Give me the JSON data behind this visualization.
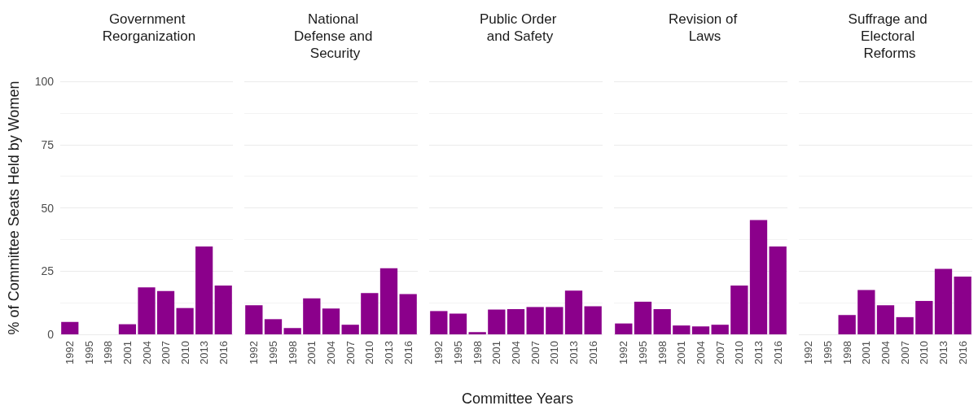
{
  "chart_data": [
    {
      "type": "bar",
      "title": "Government Reorganization",
      "ylabel": "% of Committee Seats Held by Women",
      "categories": [
        "1992",
        "1995",
        "1998",
        "2001",
        "2004",
        "2007",
        "2010",
        "2013",
        "2016"
      ],
      "values": [
        4.9,
        0,
        0,
        4.0,
        18.6,
        17.1,
        10.4,
        34.7,
        19.3
      ],
      "color": "#8b008b",
      "ylim": [
        0,
        100
      ],
      "yticks": [
        0,
        25,
        50,
        75,
        100
      ],
      "grid": "y"
    },
    {
      "type": "bar",
      "title": "National Defense and Security",
      "categories": [
        "1992",
        "1995",
        "1998",
        "2001",
        "2004",
        "2007",
        "2010",
        "2013",
        "2016"
      ],
      "values": [
        11.5,
        6.0,
        2.5,
        14.2,
        10.2,
        3.8,
        16.3,
        26.1,
        15.9
      ],
      "color": "#8b008b",
      "ylim": [
        0,
        100
      ],
      "yticks": [
        0,
        25,
        50,
        75,
        100
      ],
      "grid": "y",
      "tick_labels": "x"
    },
    {
      "type": "bar",
      "title": "Public Order and Safety",
      "xlabel": "Committee Years",
      "categories": [
        "1992",
        "1995",
        "1998",
        "2001",
        "2004",
        "2007",
        "2010",
        "2013",
        "2016"
      ],
      "values": [
        9.2,
        8.2,
        0.9,
        9.8,
        10.0,
        10.8,
        10.8,
        17.3,
        11.1
      ],
      "color": "#8b008b",
      "ylim": [
        0,
        100
      ],
      "yticks": [
        0,
        25,
        50,
        75,
        100
      ],
      "grid": "y",
      "tick_labels": "x"
    },
    {
      "type": "bar",
      "title": "Revision of Laws",
      "categories": [
        "1992",
        "1995",
        "1998",
        "2001",
        "2004",
        "2007",
        "2010",
        "2013",
        "2016"
      ],
      "values": [
        4.3,
        12.9,
        10.0,
        3.5,
        3.1,
        3.8,
        19.3,
        45.2,
        34.7
      ],
      "color": "#8b008b",
      "ylim": [
        0,
        100
      ],
      "yticks": [
        0,
        25,
        50,
        75,
        100
      ],
      "grid": "y",
      "tick_labels": "x"
    },
    {
      "type": "bar",
      "title": "Suffrage and Electoral Reforms",
      "categories": [
        "1992",
        "1995",
        "1998",
        "2001",
        "2004",
        "2007",
        "2010",
        "2013",
        "2016"
      ],
      "values": [
        0,
        0,
        7.6,
        17.5,
        11.5,
        6.8,
        13.2,
        25.9,
        22.8
      ],
      "color": "#8b008b",
      "ylim": [
        0,
        100
      ],
      "yticks": [
        0,
        25,
        50,
        75,
        100
      ],
      "grid": "y",
      "tick_labels": "x"
    }
  ]
}
